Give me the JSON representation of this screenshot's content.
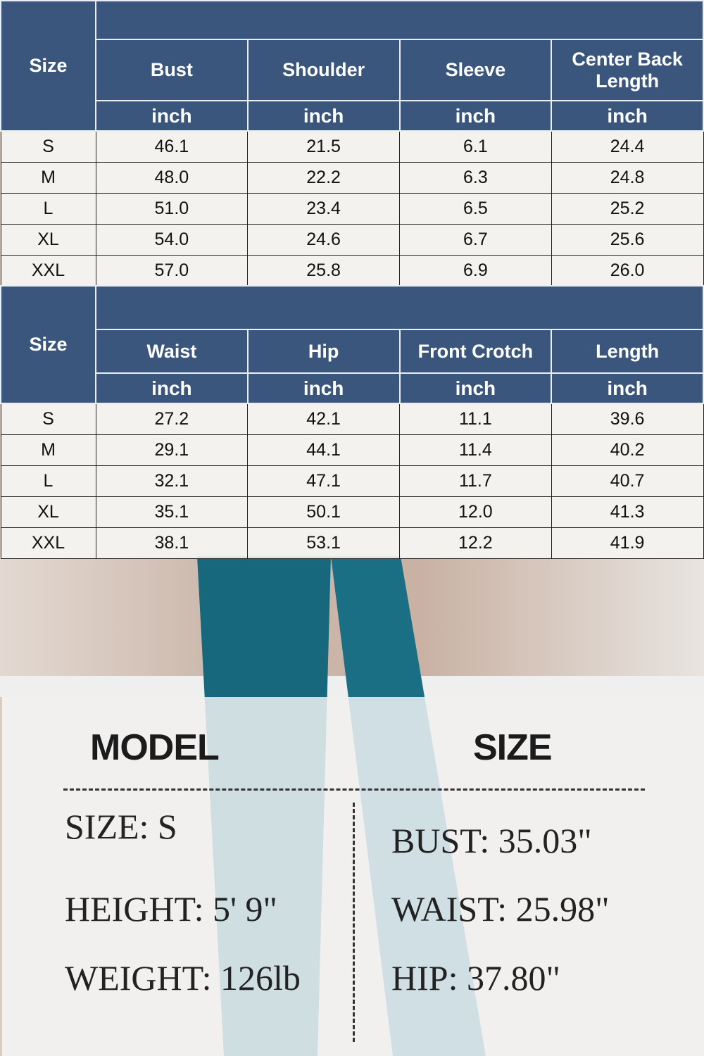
{
  "top_table": {
    "size_label": "Size",
    "headers": [
      "Bust",
      "Shoulder",
      "Sleeve",
      "Center Back Length"
    ],
    "unit": "inch",
    "rows": [
      [
        "S",
        "46.1",
        "21.5",
        "6.1",
        "24.4"
      ],
      [
        "M",
        "48.0",
        "22.2",
        "6.3",
        "24.8"
      ],
      [
        "L",
        "51.0",
        "23.4",
        "6.5",
        "25.2"
      ],
      [
        "XL",
        "54.0",
        "24.6",
        "6.7",
        "25.6"
      ],
      [
        "XXL",
        "57.0",
        "25.8",
        "6.9",
        "26.0"
      ]
    ]
  },
  "bottom_table": {
    "size_label": "Size",
    "headers": [
      "Waist",
      "Hip",
      "Front Crotch",
      "Length"
    ],
    "unit": "inch",
    "rows": [
      [
        "S",
        "27.2",
        "42.1",
        "11.1",
        "39.6"
      ],
      [
        "M",
        "29.1",
        "44.1",
        "11.4",
        "40.2"
      ],
      [
        "L",
        "32.1",
        "47.1",
        "11.7",
        "40.7"
      ],
      [
        "XL",
        "35.1",
        "50.1",
        "12.0",
        "41.3"
      ],
      [
        "XXL",
        "38.1",
        "53.1",
        "12.2",
        "41.9"
      ]
    ]
  },
  "model": {
    "title_left": "MODEL",
    "title_right": "SIZE",
    "left": [
      "SIZE: S",
      "HEIGHT: 5' 9\"",
      "WEIGHT: 126lb"
    ],
    "right": [
      "BUST: 35.03\"",
      "WAIST:  25.98\"",
      "HIP: 37.80\""
    ]
  },
  "colors": {
    "header": "#234673",
    "pants": "#17687c"
  }
}
